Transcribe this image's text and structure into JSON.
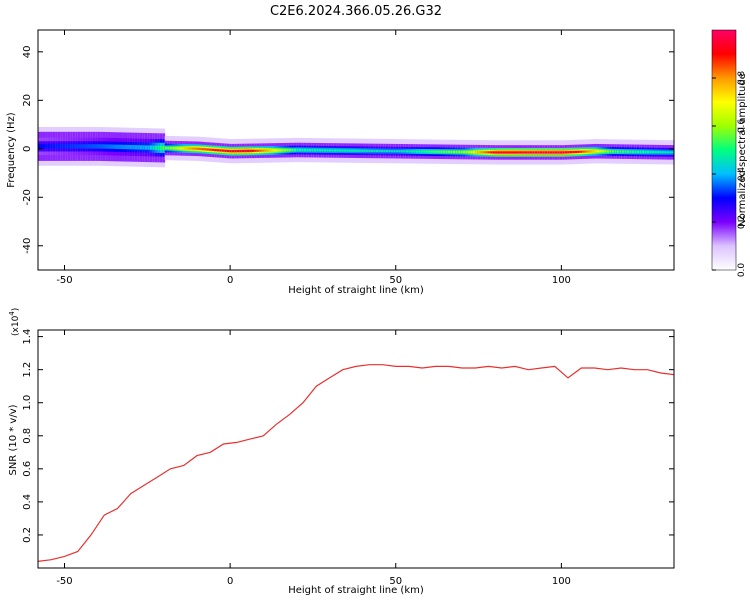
{
  "figure": {
    "title": "C2E6.2024.366.05.26.G32"
  },
  "chart_data": [
    {
      "type": "heatmap",
      "xlabel": "Height of straight line (km)",
      "ylabel": "Frequency (Hz)",
      "xlim": [
        -58,
        134
      ],
      "ylim": [
        -50,
        49
      ],
      "xticks": [
        -50,
        0,
        50,
        100
      ],
      "xtick_labels": [
        "-50",
        "0",
        "50",
        "100"
      ],
      "yticks": [
        -40,
        -20,
        0,
        20,
        40
      ],
      "ytick_labels": [
        "-40",
        "-20",
        "0",
        "20",
        "40"
      ],
      "colorbar": {
        "label": "Normalized spectral amplitude",
        "range": [
          0,
          1
        ],
        "ticks": [
          0.0,
          0.2,
          0.4,
          0.6,
          0.8
        ],
        "tick_labels": [
          "0.0",
          "0.2",
          "0.4",
          "0.6",
          "0.8"
        ],
        "colormap": [
          "#ffffff",
          "#dcc3ff",
          "#7a00ff",
          "#0000ff",
          "#00bfff",
          "#00ff80",
          "#a0ff00",
          "#ffff00",
          "#ff9900",
          "#ff0000",
          "#ff0066"
        ]
      },
      "ridge": {
        "center_hz": [
          [
            -58,
            1
          ],
          [
            -40,
            1
          ],
          [
            -25,
            0.5
          ],
          [
            -10,
            0
          ],
          [
            0,
            -1
          ],
          [
            20,
            -0.5
          ],
          [
            50,
            -1
          ],
          [
            80,
            -1.5
          ],
          [
            100,
            -1.5
          ],
          [
            110,
            -1
          ],
          [
            134,
            -1.5
          ]
        ],
        "amplitude": [
          [
            -58,
            0.3
          ],
          [
            -40,
            0.35
          ],
          [
            -25,
            0.4
          ],
          [
            -12,
            0.8
          ],
          [
            -5,
            0.9
          ],
          [
            5,
            0.95
          ],
          [
            20,
            0.5
          ],
          [
            50,
            0.45
          ],
          [
            70,
            0.6
          ],
          [
            80,
            0.95
          ],
          [
            100,
            0.98
          ],
          [
            105,
            0.9
          ],
          [
            115,
            0.55
          ],
          [
            134,
            0.45
          ]
        ]
      },
      "grid": false,
      "legend": "colorbar-right"
    },
    {
      "type": "line",
      "xlabel": "Height of straight line (km)",
      "ylabel": "SNR (10 * v/v)",
      "y_multiplier": "(x10",
      "y_multiplier_exp": "4",
      "xlim": [
        -58,
        134
      ],
      "ylim": [
        0,
        1.44
      ],
      "xticks": [
        -50,
        0,
        50,
        100
      ],
      "xtick_labels": [
        "-50",
        "0",
        "50",
        "100"
      ],
      "yticks": [
        0.2,
        0.4,
        0.6,
        0.8,
        1.0,
        1.2,
        1.4
      ],
      "ytick_labels": [
        "0.2",
        "0.4",
        "0.6",
        "0.8",
        "1.0",
        "1.2",
        "1.4"
      ],
      "color": "#e8312f",
      "series": [
        {
          "x": [
            -58,
            -54,
            -50,
            -46,
            -42,
            -38,
            -34,
            -30,
            -26,
            -22,
            -18,
            -14,
            -10,
            -6,
            -2,
            2,
            6,
            10,
            14,
            18,
            22,
            26,
            30,
            34,
            38,
            42,
            46,
            50,
            54,
            58,
            62,
            66,
            70,
            74,
            78,
            82,
            86,
            90,
            94,
            98,
            102,
            106,
            110,
            114,
            118,
            122,
            126,
            130,
            134
          ],
          "y": [
            0.04,
            0.05,
            0.07,
            0.1,
            0.2,
            0.32,
            0.36,
            0.45,
            0.5,
            0.55,
            0.6,
            0.62,
            0.68,
            0.7,
            0.75,
            0.76,
            0.78,
            0.8,
            0.87,
            0.93,
            1.0,
            1.1,
            1.15,
            1.2,
            1.22,
            1.23,
            1.23,
            1.22,
            1.22,
            1.21,
            1.22,
            1.22,
            1.21,
            1.21,
            1.22,
            1.21,
            1.22,
            1.2,
            1.21,
            1.22,
            1.15,
            1.21,
            1.21,
            1.2,
            1.21,
            1.2,
            1.2,
            1.18,
            1.17
          ]
        }
      ],
      "grid": false,
      "legend": "none"
    }
  ]
}
